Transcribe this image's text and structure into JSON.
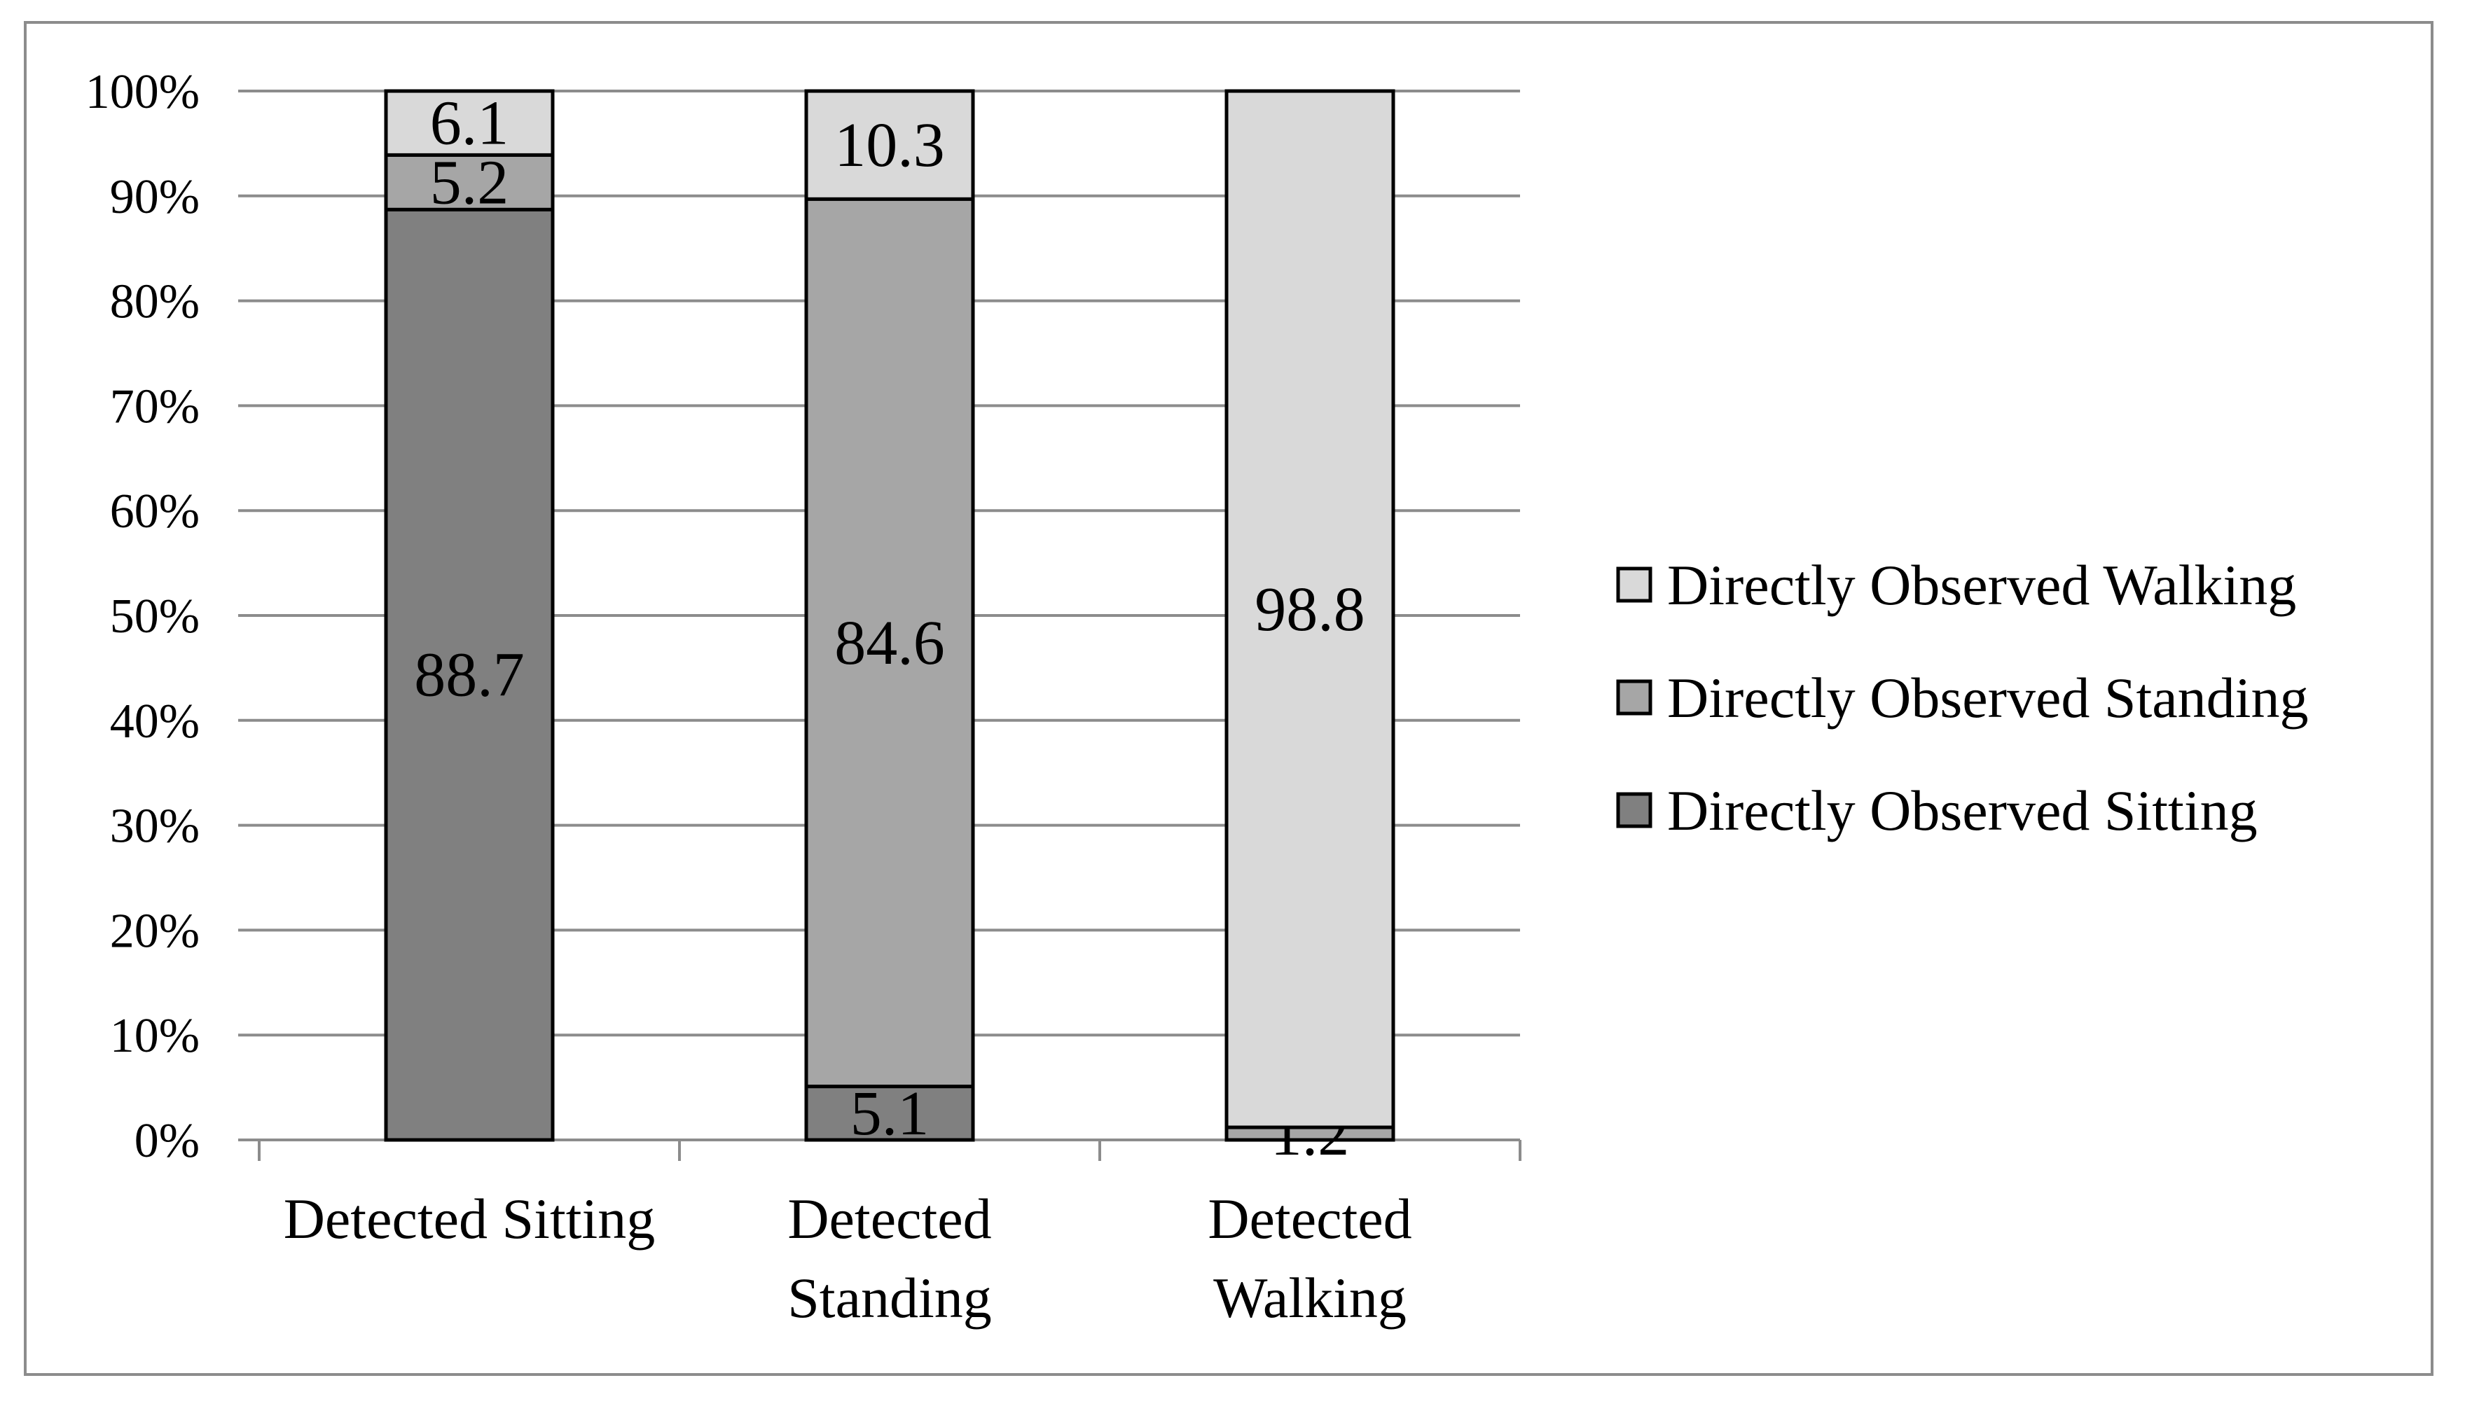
{
  "chart_data": {
    "type": "bar",
    "stacked": true,
    "percent_stacked": true,
    "categories": [
      [
        "Detected Sitting"
      ],
      [
        "Detected",
        "Standing"
      ],
      [
        "Detected",
        "Walking"
      ]
    ],
    "series": [
      {
        "name": "Directly Observed Sitting",
        "values": [
          88.7,
          5.1,
          0
        ],
        "labels": [
          "88.7",
          "5.1",
          ""
        ],
        "color": "#808080"
      },
      {
        "name": "Directly Observed Standing",
        "values": [
          5.2,
          84.6,
          1.2
        ],
        "labels": [
          "5.2",
          "84.6",
          "1.2"
        ],
        "color": "#a6a6a6"
      },
      {
        "name": "Directly Observed Walking",
        "values": [
          6.1,
          10.3,
          98.8
        ],
        "labels": [
          "6.1",
          "10.3",
          "98.8"
        ],
        "color": "#d9d9d9"
      }
    ],
    "yticks": [
      "0%",
      "10%",
      "20%",
      "30%",
      "40%",
      "50%",
      "60%",
      "70%",
      "80%",
      "90%",
      "100%"
    ],
    "ylim": [
      0,
      100
    ],
    "grid": true,
    "legend_position": "right",
    "legend_order": [
      "Directly Observed Walking",
      "Directly Observed Standing",
      "Directly Observed Sitting"
    ],
    "gridline_color": "#8c8c8c",
    "bar_outline_color": "#000000"
  }
}
